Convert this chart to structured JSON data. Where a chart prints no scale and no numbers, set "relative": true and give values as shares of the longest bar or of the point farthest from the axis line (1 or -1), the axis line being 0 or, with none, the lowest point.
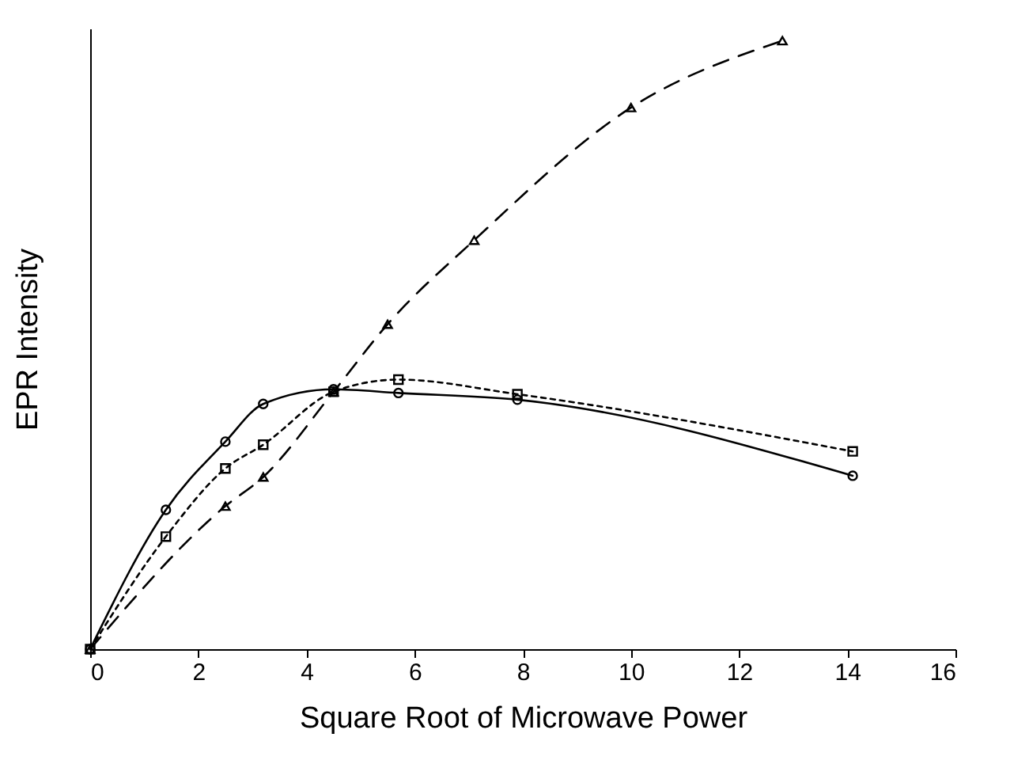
{
  "chart_data": {
    "type": "line",
    "xlabel": "Square Root of Microwave Power",
    "ylabel": "EPR Intensity",
    "relative": true,
    "xlim": [
      0,
      16
    ],
    "xticks": [
      0,
      2,
      4,
      6,
      8,
      10,
      12,
      14,
      16
    ],
    "series": [
      {
        "color": "#000000",
        "marker": "circle",
        "line_style": "solid",
        "x": [
          0,
          1.4,
          2.5,
          3.2,
          4.5,
          5.7,
          7.9,
          14.1
        ],
        "values": [
          0,
          0.229,
          0.341,
          0.403,
          0.427,
          0.421,
          0.41,
          0.285
        ]
      },
      {
        "color": "#000000",
        "marker": "square",
        "line_style": "dotted",
        "x": [
          0,
          1.4,
          2.5,
          3.2,
          4.5,
          5.7,
          7.9,
          14.1
        ],
        "values": [
          0,
          0.185,
          0.297,
          0.336,
          0.423,
          0.443,
          0.419,
          0.325
        ]
      },
      {
        "color": "#000000",
        "marker": "triangle",
        "line_style": "dashed",
        "x": [
          0,
          2.5,
          3.2,
          4.5,
          5.5,
          7.1,
          10,
          12.8
        ],
        "values": [
          0,
          0.235,
          0.283,
          0.423,
          0.534,
          0.672,
          0.89,
          1
        ]
      }
    ]
  }
}
